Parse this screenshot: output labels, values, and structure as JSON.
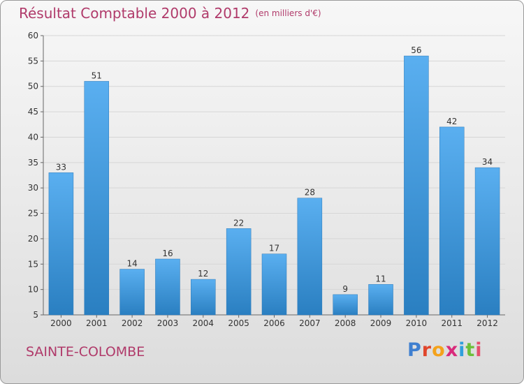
{
  "header": {
    "title": "Résultat Comptable 2000 à 2012",
    "unit": "(en milliers d'€)"
  },
  "footer": {
    "place": "SAINTE-COLOMBE",
    "brand_letters": [
      "P",
      "r",
      "o",
      "x",
      "i",
      "t",
      "i"
    ],
    "brand_colors": [
      "#3f7fd0",
      "#e0452b",
      "#f4a21b",
      "#d92a7b",
      "#2f9fdc",
      "#6cbf3a",
      "#e54f6d"
    ]
  },
  "colors": {
    "bar_top": "#5aaff0",
    "bar_bottom": "#2a7fc1",
    "grid": "#d6d6d6",
    "axis": "#666666",
    "title": "#b03a6a"
  },
  "chart_data": {
    "type": "bar",
    "title": "Résultat Comptable 2000 à 2012",
    "xlabel": "",
    "ylabel": "",
    "ylim": [
      5,
      60
    ],
    "yticks": [
      5,
      10,
      15,
      20,
      25,
      30,
      35,
      40,
      45,
      50,
      55,
      60
    ],
    "grid": true,
    "categories": [
      "2000",
      "2001",
      "2002",
      "2003",
      "2004",
      "2005",
      "2006",
      "2007",
      "2008",
      "2009",
      "2010",
      "2011",
      "2012"
    ],
    "values": [
      33,
      51,
      14,
      16,
      12,
      22,
      17,
      28,
      9,
      11,
      56,
      42,
      34
    ]
  }
}
